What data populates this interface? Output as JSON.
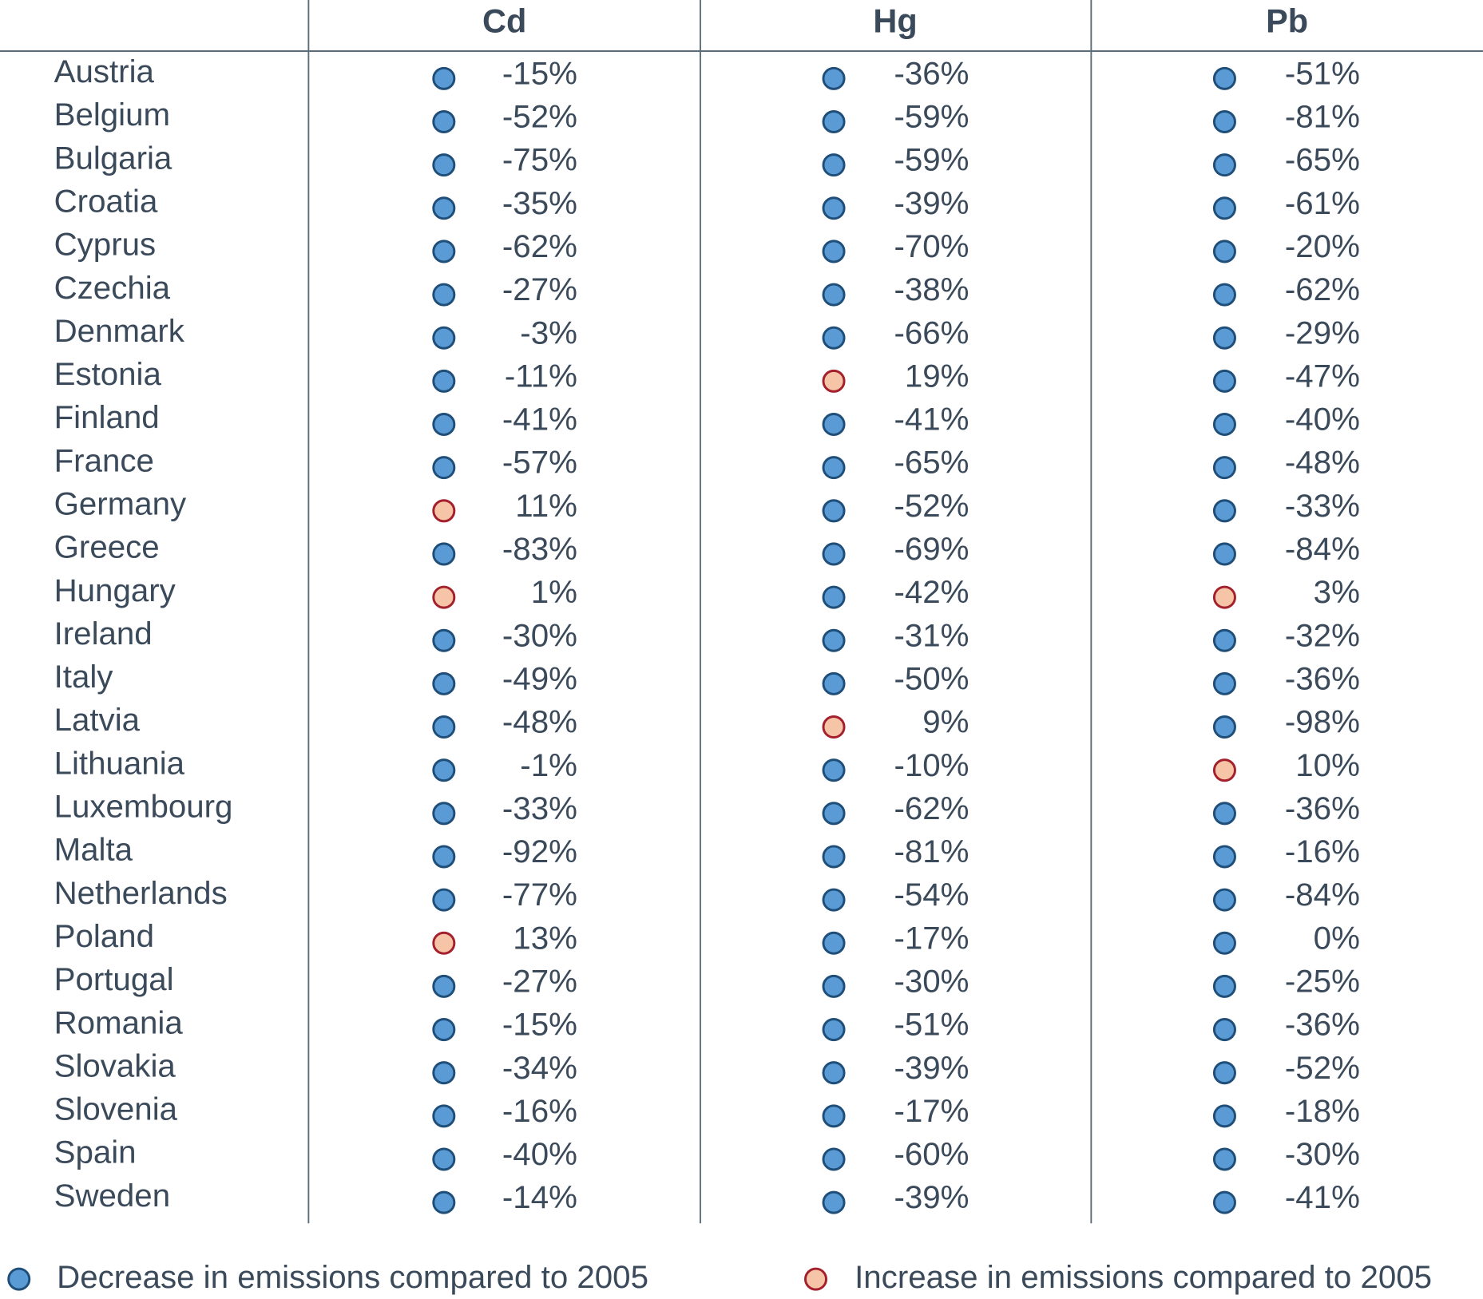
{
  "table": {
    "columns": [
      "Cd",
      "Hg",
      "Pb"
    ],
    "rows": [
      [
        "Austria",
        "-15%",
        "-36%",
        "-51%"
      ],
      [
        "Belgium",
        "-52%",
        "-59%",
        "-81%"
      ],
      [
        "Bulgaria",
        "-75%",
        "-59%",
        "-65%"
      ],
      [
        "Croatia",
        "-35%",
        "-39%",
        "-61%"
      ],
      [
        "Cyprus",
        "-62%",
        "-70%",
        "-20%"
      ],
      [
        "Czechia",
        "-27%",
        "-38%",
        "-62%"
      ],
      [
        "Denmark",
        "-3%",
        "-66%",
        "-29%"
      ],
      [
        "Estonia",
        "-11%",
        "19%",
        "-47%"
      ],
      [
        "Finland",
        "-41%",
        "-41%",
        "-40%"
      ],
      [
        "France",
        "-57%",
        "-65%",
        "-48%"
      ],
      [
        "Germany",
        "11%",
        "-52%",
        "-33%"
      ],
      [
        "Greece",
        "-83%",
        "-69%",
        "-84%"
      ],
      [
        "Hungary",
        "1%",
        "-42%",
        "3%"
      ],
      [
        "Ireland",
        "-30%",
        "-31%",
        "-32%"
      ],
      [
        "Italy",
        "-49%",
        "-50%",
        "-36%"
      ],
      [
        "Latvia",
        "-48%",
        "9%",
        "-98%"
      ],
      [
        "Lithuania",
        "-1%",
        "-10%",
        "10%"
      ],
      [
        "Luxembourg",
        "-33%",
        "-62%",
        "-36%"
      ],
      [
        "Malta",
        "-92%",
        "-81%",
        "-16%"
      ],
      [
        "Netherlands",
        "-77%",
        "-54%",
        "-84%"
      ],
      [
        "Poland",
        "13%",
        "-17%",
        "0%"
      ],
      [
        "Portugal",
        "-27%",
        "-30%",
        "-25%"
      ],
      [
        "Romania",
        "-15%",
        "-51%",
        "-36%"
      ],
      [
        "Slovakia",
        "-34%",
        "-39%",
        "-52%"
      ],
      [
        "Slovenia",
        "-16%",
        "-17%",
        "-18%"
      ],
      [
        "Spain",
        "-40%",
        "-60%",
        "-30%"
      ],
      [
        "Sweden",
        "-14%",
        "-39%",
        "-41%"
      ]
    ]
  },
  "legend": {
    "decrease": "Decrease in emissions compared to 2005",
    "increase": "Increase in emissions compared to 2005"
  }
}
